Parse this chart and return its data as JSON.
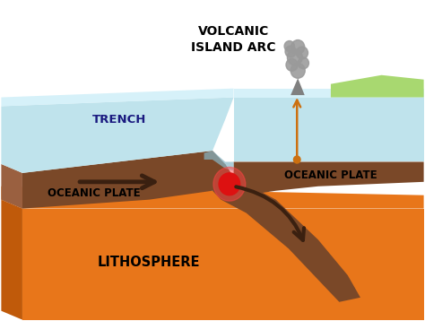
{
  "bg_color": "#ffffff",
  "ocean_surface_color": "#b8e0ea",
  "ocean_surface_light": "#cceef8",
  "ocean_surface_top": "#ddf4fb",
  "plate_brown": "#7a4828",
  "plate_brown_light": "#9a6040",
  "lithosphere_orange": "#e8761a",
  "lithosphere_side": "#c05a0a",
  "green_color": "#a8d870",
  "arrow_color": "#3a2010",
  "magma_color": "#dd1111",
  "upwelling_color": "#cc7010",
  "smoke_color": "#9a9a9a",
  "label_trench": "TRENCH",
  "label_oceanic_left": "OCEANIC PLATE",
  "label_oceanic_right": "OCEANIC PLATE",
  "label_lithosphere": "LITHOSPHERE",
  "title_volcanic": "VOLCANIC\nISLAND ARC"
}
